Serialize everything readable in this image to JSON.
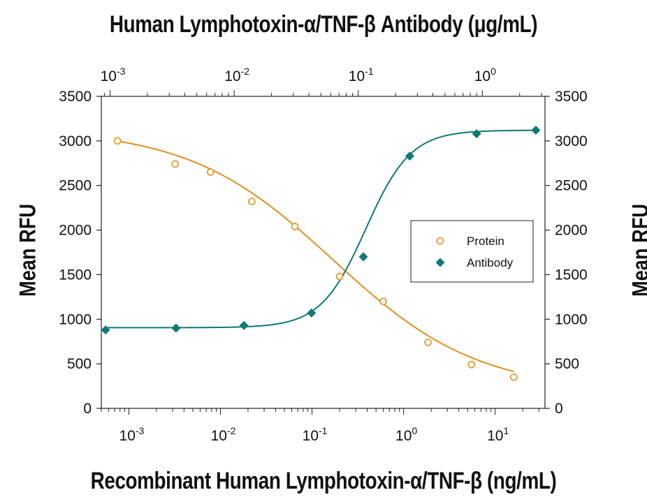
{
  "chart_data": {
    "type": "scatter",
    "title": "Human Lymphotoxin-α/TNF-β  Antibody (μg/mL)",
    "xlabel": "Recombinant Human Lymphotoxin-α/TNF-β (ng/mL)",
    "ylabel_left": "Mean RFU",
    "ylabel_right": "Mean RFU",
    "x_scale": "log",
    "x_bottom_ticks": [
      {
        "value": 0.001,
        "base": "10",
        "exp": "-3"
      },
      {
        "value": 0.01,
        "base": "10",
        "exp": "-2"
      },
      {
        "value": 0.1,
        "base": "10",
        "exp": "-1"
      },
      {
        "value": 1,
        "base": "10",
        "exp": "0"
      },
      {
        "value": 10,
        "base": "10",
        "exp": "1"
      }
    ],
    "x_top_ticks": [
      {
        "value": 0.001,
        "base": "10",
        "exp": "-3"
      },
      {
        "value": 0.01,
        "base": "10",
        "exp": "-2"
      },
      {
        "value": 0.1,
        "base": "10",
        "exp": "-1"
      },
      {
        "value": 1,
        "base": "10",
        "exp": "0"
      }
    ],
    "bottom_xlim": [
      0.0005,
      35
    ],
    "top_xlim": [
      0.00085,
      3.2
    ],
    "ylim": [
      0,
      3500
    ],
    "y_ticks": [
      0,
      500,
      1000,
      1500,
      2000,
      2500,
      3000,
      3500
    ],
    "grid": false,
    "legend_position": "center-right",
    "series": [
      {
        "name": "Protein",
        "axis": "bottom",
        "marker": "open-circle",
        "color": "#e0901e",
        "x": [
          0.00075,
          0.0032,
          0.0078,
          0.022,
          0.065,
          0.2,
          0.6,
          1.85,
          5.5,
          16
        ],
        "y": [
          3000,
          2740,
          2650,
          2320,
          2040,
          1480,
          1200,
          740,
          490,
          350
        ],
        "fit_x_range": [
          0.00075,
          16
        ],
        "fit": {
          "top": 3140,
          "bottom": 190,
          "ec50": 0.17,
          "hill": 0.55
        }
      },
      {
        "name": "Antibody",
        "axis": "top",
        "marker": "filled-diamond",
        "color": "#0e7a74",
        "x": [
          0.00092,
          0.0034,
          0.012,
          0.042,
          0.11,
          0.26,
          0.9,
          2.7
        ],
        "y": [
          880,
          900,
          930,
          1070,
          1700,
          2830,
          3080,
          3120
        ],
        "fit_x_range": [
          0.00092,
          2.7
        ],
        "fit": {
          "top": 3120,
          "bottom": 905,
          "ec50": 0.115,
          "hill": 2.4
        }
      }
    ]
  }
}
